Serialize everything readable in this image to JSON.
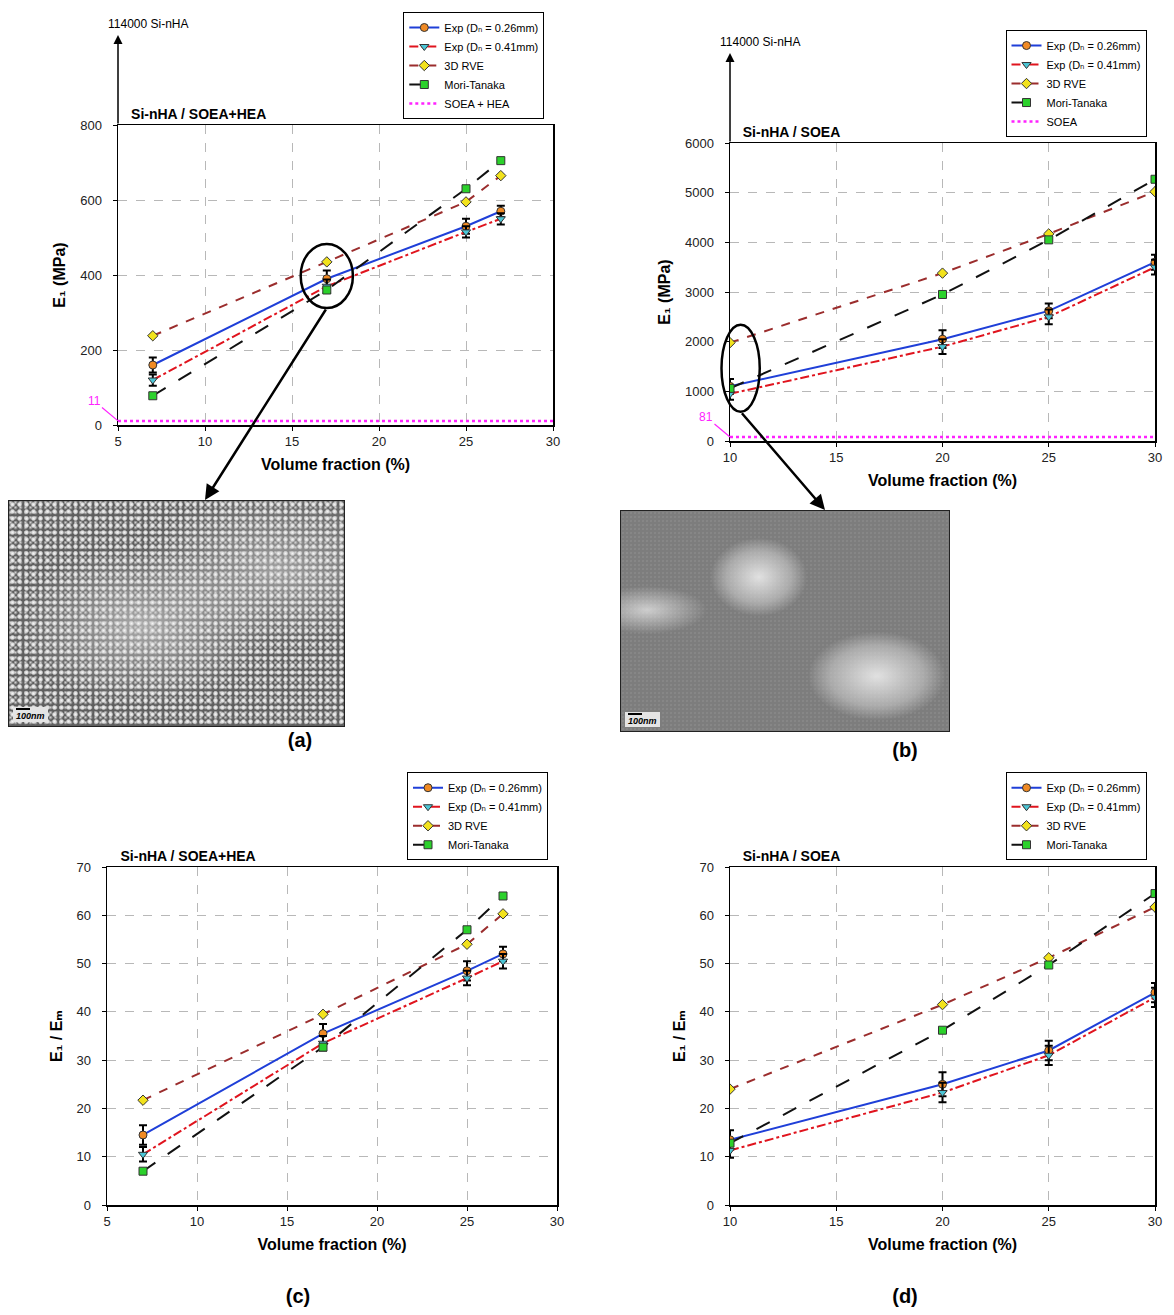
{
  "chart_data": [
    {
      "type": "line",
      "title": "Si-nHA / SOEA+HEA",
      "panel_label": "(a)",
      "image_scale_label": "100nm",
      "x_label": "Volume fraction (%)",
      "y_label": "E₁ (MPa)",
      "xlim": [
        5,
        30
      ],
      "xticks": [
        5,
        10,
        15,
        20,
        25,
        30
      ],
      "ylim": [
        0,
        800
      ],
      "yticks": [
        0,
        200,
        400,
        600,
        800
      ],
      "grid": true,
      "legend": "top right",
      "annotations": [
        {
          "text": "114000 Si-nHA"
        },
        {
          "text": "11",
          "y": 11
        }
      ],
      "x": [
        7,
        17,
        25,
        27
      ],
      "series": [
        {
          "name": "Exp (Dₙ = 0.26mm)",
          "color": "#1f3fd8",
          "marker": "circle",
          "line_style": "solid",
          "values": [
            160,
            390,
            530,
            570
          ],
          "errors": [
            20,
            22,
            20,
            15
          ]
        },
        {
          "name": "Exp (Dₙ = 0.41mm)",
          "color": "#e0141e",
          "marker": "triangle-down",
          "line_style": "dashdot",
          "values": [
            120,
            370,
            515,
            550
          ],
          "errors": [
            15,
            18,
            15,
            15
          ]
        },
        {
          "name": "3D RVE",
          "color": "#9b2d2d",
          "marker": "diamond",
          "line_style": "dash",
          "values": [
            238,
            435,
            595,
            665
          ]
        },
        {
          "name": "Mori-Tanaka",
          "color": "#111111",
          "marker": "square",
          "line_style": "longdash",
          "values": [
            78,
            360,
            630,
            705
          ]
        },
        {
          "name": "SOEA + HEA",
          "color": "#ff22ff",
          "marker": "none",
          "line_style": "dot",
          "x": [
            5,
            30
          ],
          "values": [
            11,
            11
          ]
        }
      ]
    },
    {
      "type": "line",
      "title": "Si-nHA / SOEA",
      "panel_label": "(b)",
      "image_scale_label": "100nm",
      "x_label": "Volume fraction (%)",
      "y_label": "E₁ (MPa)",
      "xlim": [
        10,
        30
      ],
      "xticks": [
        10,
        15,
        20,
        25,
        30
      ],
      "ylim": [
        0,
        6000
      ],
      "yticks": [
        0,
        1000,
        2000,
        3000,
        4000,
        5000,
        6000
      ],
      "grid": true,
      "legend": "top right",
      "annotations": [
        {
          "text": "114000 Si-nHA"
        },
        {
          "text": "81",
          "y": 81
        }
      ],
      "x": [
        10,
        20,
        25,
        30
      ],
      "series": [
        {
          "name": "Exp (Dₙ = 0.26mm)",
          "color": "#1f3fd8",
          "marker": "circle",
          "line_style": "solid",
          "values": [
            1100,
            2050,
            2620,
            3600
          ],
          "errors": [
            150,
            180,
            150,
            150
          ]
        },
        {
          "name": "Exp (Dₙ = 0.41mm)",
          "color": "#e0141e",
          "marker": "triangle-down",
          "line_style": "dashdot",
          "values": [
            950,
            1900,
            2500,
            3500
          ],
          "errors": [
            120,
            150,
            150,
            150
          ]
        },
        {
          "name": "3D RVE",
          "color": "#9b2d2d",
          "marker": "diamond",
          "line_style": "dash",
          "values": [
            1980,
            3380,
            4170,
            5020
          ]
        },
        {
          "name": "Mori-Tanaka",
          "color": "#111111",
          "marker": "square",
          "line_style": "longdash",
          "values": [
            1060,
            2950,
            4050,
            5270
          ]
        },
        {
          "name": "SOEA",
          "color": "#ff22ff",
          "marker": "none",
          "line_style": "dot",
          "x": [
            10,
            30
          ],
          "values": [
            81,
            81
          ]
        }
      ]
    },
    {
      "type": "line",
      "title": "Si-nHA / SOEA+HEA",
      "panel_label": "(c)",
      "x_label": "Volume fraction (%)",
      "y_label": "E₁ / Eₘ",
      "xlim": [
        5,
        30
      ],
      "xticks": [
        5,
        10,
        15,
        20,
        25,
        30
      ],
      "ylim": [
        0,
        70
      ],
      "yticks": [
        0,
        10,
        20,
        30,
        40,
        50,
        60,
        70
      ],
      "grid": true,
      "legend": "top right",
      "x": [
        7,
        17,
        25,
        27
      ],
      "series": [
        {
          "name": "Exp (Dₙ = 0.26mm)",
          "color": "#1f3fd8",
          "marker": "circle",
          "line_style": "solid",
          "values": [
            14.5,
            35.5,
            48.5,
            52
          ],
          "errors": [
            2,
            2,
            2,
            1.5
          ]
        },
        {
          "name": "Exp (Dₙ = 0.41mm)",
          "color": "#e0141e",
          "marker": "triangle-down",
          "line_style": "dashdot",
          "values": [
            10.5,
            33.5,
            47,
            50.5
          ],
          "errors": [
            1.5,
            1.5,
            1.5,
            1.5
          ]
        },
        {
          "name": "3D RVE",
          "color": "#9b2d2d",
          "marker": "diamond",
          "line_style": "dash",
          "values": [
            21.7,
            39.5,
            54,
            60.3
          ]
        },
        {
          "name": "Mori-Tanaka",
          "color": "#111111",
          "marker": "square",
          "line_style": "longdash",
          "values": [
            7,
            32.7,
            57,
            64
          ]
        }
      ]
    },
    {
      "type": "line",
      "title": "Si-nHA / SOEA",
      "panel_label": "(d)",
      "x_label": "Volume fraction (%)",
      "y_label": "E₁ / Eₘ",
      "xlim": [
        10,
        30
      ],
      "xticks": [
        10,
        15,
        20,
        25,
        30
      ],
      "ylim": [
        0,
        70
      ],
      "yticks": [
        0,
        10,
        20,
        30,
        40,
        50,
        60,
        70
      ],
      "grid": true,
      "legend": "top right",
      "x": [
        10,
        20,
        25,
        30
      ],
      "series": [
        {
          "name": "Exp (Dₙ = 0.26mm)",
          "color": "#1f3fd8",
          "marker": "circle",
          "line_style": "solid",
          "values": [
            13.5,
            25,
            32,
            44
          ],
          "errors": [
            2,
            2.5,
            2,
            2
          ]
        },
        {
          "name": "Exp (Dₙ = 0.41mm)",
          "color": "#e0141e",
          "marker": "triangle-down",
          "line_style": "dashdot",
          "values": [
            11.3,
            23.3,
            31,
            43
          ],
          "errors": [
            1.5,
            2,
            2,
            2
          ]
        },
        {
          "name": "3D RVE",
          "color": "#9b2d2d",
          "marker": "diamond",
          "line_style": "dash",
          "values": [
            24,
            41.5,
            51.2,
            61.7
          ]
        },
        {
          "name": "Mori-Tanaka",
          "color": "#111111",
          "marker": "square",
          "line_style": "longdash",
          "values": [
            12.8,
            36.2,
            49.7,
            64.5
          ]
        }
      ]
    }
  ]
}
